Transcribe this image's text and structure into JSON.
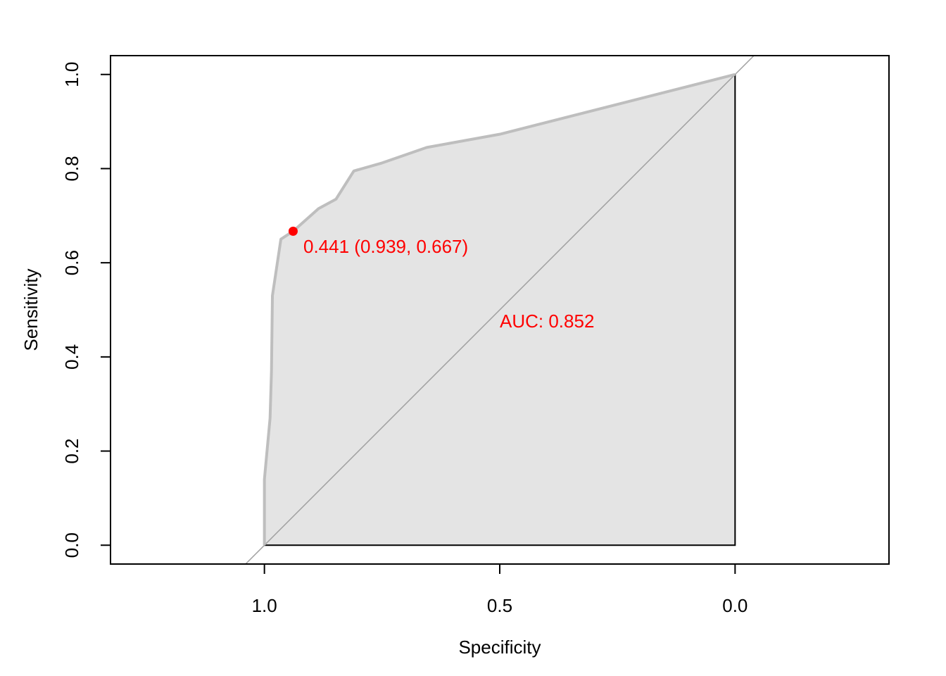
{
  "chart_data": {
    "type": "line",
    "xlabel": "Specificity",
    "ylabel": "Sensitivity",
    "xlim": [
      1.327,
      -0.327
    ],
    "ylim": [
      -0.04,
      1.04
    ],
    "x_reversed": true,
    "x_ticks": [
      {
        "value": 1.0,
        "label": "1.0"
      },
      {
        "value": 0.5,
        "label": "0.5"
      },
      {
        "value": 0.0,
        "label": "0.0"
      }
    ],
    "y_ticks": [
      {
        "value": 0.0,
        "label": "0.0"
      },
      {
        "value": 0.2,
        "label": "0.2"
      },
      {
        "value": 0.4,
        "label": "0.4"
      },
      {
        "value": 0.6,
        "label": "0.6"
      },
      {
        "value": 0.8,
        "label": "0.8"
      },
      {
        "value": 1.0,
        "label": "1.0"
      }
    ],
    "series": [
      {
        "points": [
          {
            "x": 1.0,
            "y": 0.0
          },
          {
            "x": 1.0,
            "y": 0.14
          },
          {
            "x": 0.988,
            "y": 0.27
          },
          {
            "x": 0.985,
            "y": 0.37
          },
          {
            "x": 0.983,
            "y": 0.53
          },
          {
            "x": 0.965,
            "y": 0.65
          },
          {
            "x": 0.939,
            "y": 0.667
          },
          {
            "x": 0.885,
            "y": 0.715
          },
          {
            "x": 0.848,
            "y": 0.735
          },
          {
            "x": 0.81,
            "y": 0.795
          },
          {
            "x": 0.75,
            "y": 0.812
          },
          {
            "x": 0.655,
            "y": 0.845
          },
          {
            "x": 0.5,
            "y": 0.873
          },
          {
            "x": 0.0,
            "y": 1.0
          }
        ]
      }
    ],
    "auc": 0.852,
    "auc_label": "AUC: 0.852",
    "best_threshold": {
      "threshold": 0.441,
      "specificity": 0.939,
      "sensitivity": 0.667
    },
    "best_threshold_label": "0.441 (0.939, 0.667)",
    "grid": false,
    "colors": {
      "curve": "#bebebe",
      "fill": "#e4e4e4",
      "diagonal": "#a0a0a0",
      "annotation": "#ff0000",
      "axis": "#000000"
    }
  }
}
